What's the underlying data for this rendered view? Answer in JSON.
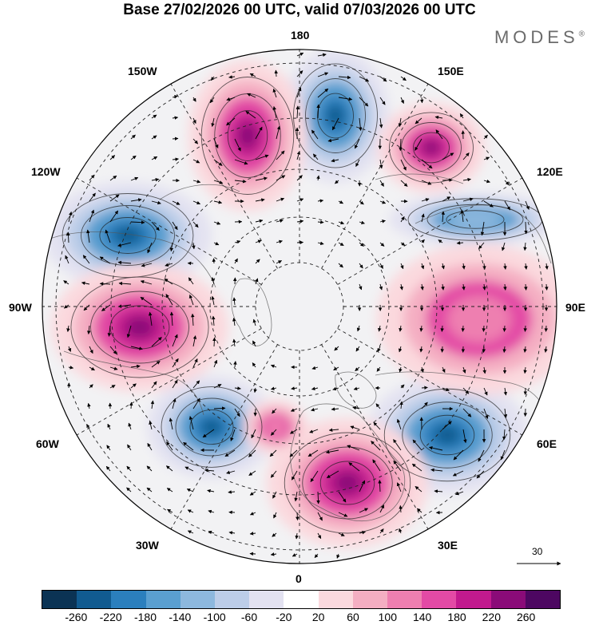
{
  "header": {
    "title": "Base 27/02/2026 00 UTC, valid 07/03/2026 00 UTC",
    "brand": "MODES",
    "brand_mark": "®"
  },
  "map": {
    "projection": "north-polar-stereographic",
    "longitude_labels": {
      "top": "180",
      "bottom": "0",
      "left": "90W",
      "right": "90E",
      "upper_left_1": "150W",
      "upper_left_2": "120W",
      "upper_right_1": "150E",
      "upper_right_2": "120E",
      "lower_left_1": "60W",
      "lower_left_2": "30W",
      "lower_right_1": "60E",
      "lower_right_2": "30E"
    },
    "reference_vector": "30"
  },
  "colorbar": {
    "labels": [
      "-260",
      "-220",
      "-180",
      "-140",
      "-100",
      "-60",
      "-20",
      "20",
      "60",
      "100",
      "140",
      "180",
      "220",
      "260"
    ],
    "colors": [
      "#0b3354",
      "#115b90",
      "#2b7fbd",
      "#5a9fd0",
      "#8db8de",
      "#bccde8",
      "#e3e2f1",
      "#ffffff",
      "#fbd9de",
      "#f4aec2",
      "#ee7fb0",
      "#e34aa5",
      "#c21a8e",
      "#8a0b78",
      "#4d0761"
    ]
  }
}
